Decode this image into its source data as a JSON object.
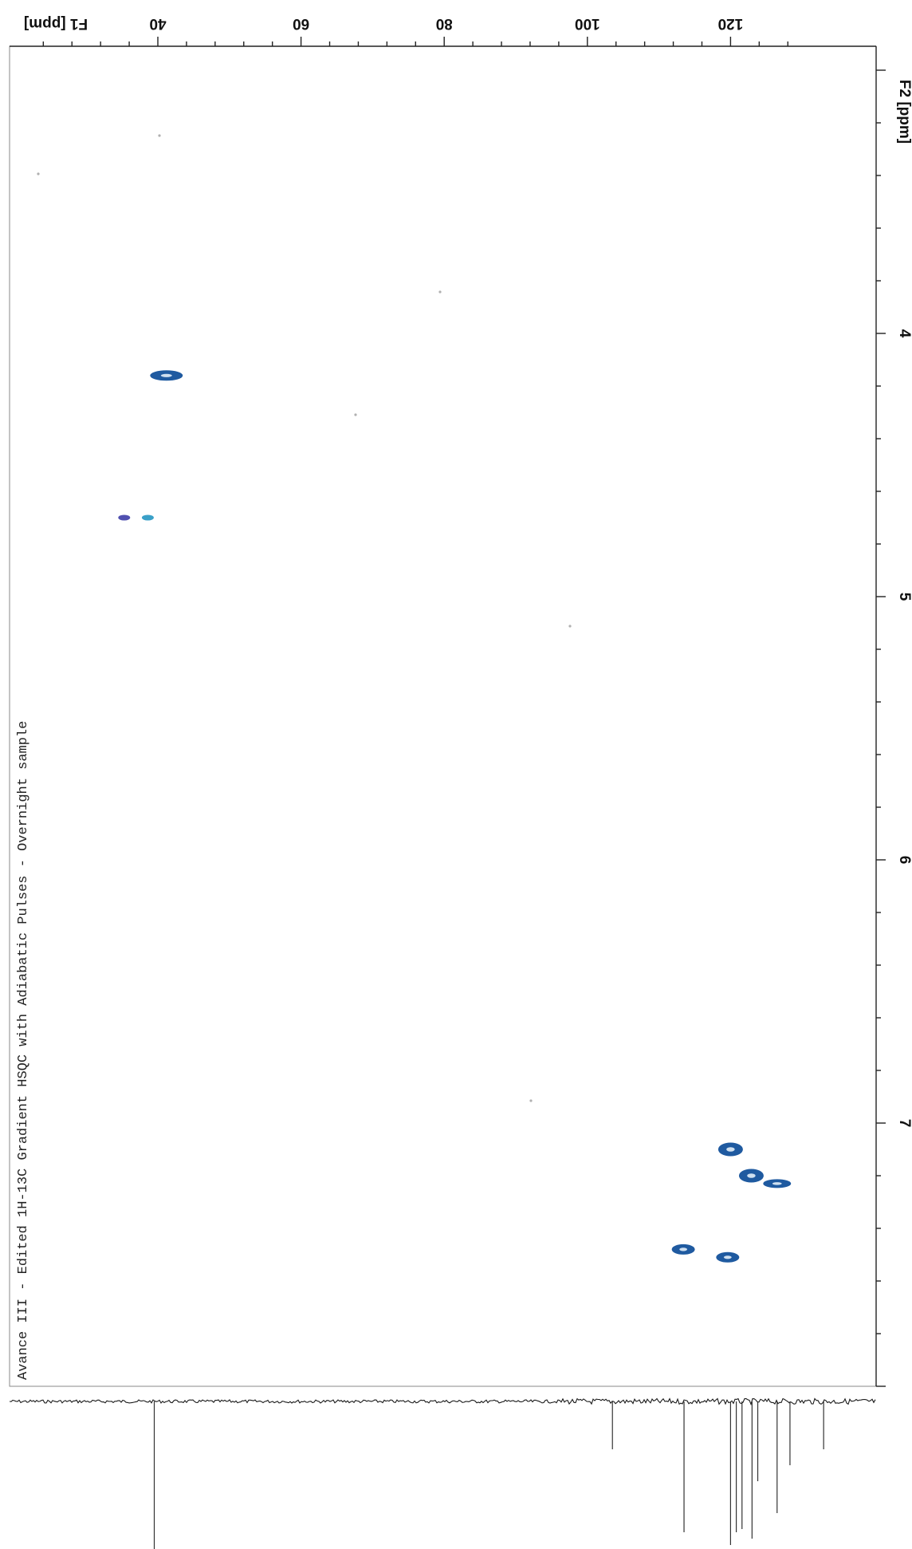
{
  "chart_data": {
    "type": "scatter",
    "title": "Avance III - Edited 1H-13C Gradient HSQC with Adiabatic Pulses - Overnight sample",
    "x_axis": {
      "label": "F2 [ppm]",
      "range": [
        2.8,
        8.0
      ],
      "ticks": [
        "4",
        "5",
        "6",
        "7"
      ]
    },
    "y_axis": {
      "label": "F1 [ppm]",
      "range": [
        22,
        130
      ],
      "ticks": [
        "40",
        "60",
        "80",
        "100",
        "120"
      ]
    },
    "orientation": "rotated 90 degrees clockwise",
    "grid": false,
    "peaks": [
      {
        "f2": 4.16,
        "f1": 41.2,
        "phase": "positive",
        "color": "#1f5aa0"
      },
      {
        "f2": 4.7,
        "f1": 38.6,
        "phase": "negative",
        "color": "#3aa0c8"
      },
      {
        "f2": 4.7,
        "f1": 35.3,
        "phase": "positive",
        "color": "#5050b0"
      },
      {
        "f2": 7.1,
        "f1": 120.0,
        "phase": "positive",
        "color": "#1f5aa0"
      },
      {
        "f2": 7.2,
        "f1": 122.9,
        "phase": "positive",
        "color": "#1f5aa0"
      },
      {
        "f2": 7.23,
        "f1": 126.5,
        "phase": "positive",
        "color": "#1f5aa0"
      },
      {
        "f2": 7.48,
        "f1": 113.4,
        "phase": "positive",
        "color": "#1f5aa0"
      },
      {
        "f2": 7.51,
        "f1": 119.6,
        "phase": "positive",
        "color": "#1f5aa0"
      }
    ],
    "projection": {
      "axis": "F1",
      "peaks": [
        {
          "f1": 39.5,
          "height": 0.95
        },
        {
          "f1": 103.5,
          "height": 0.3
        },
        {
          "f1": 113.5,
          "height": 0.82
        },
        {
          "f1": 120.0,
          "height": 0.9
        },
        {
          "f1": 120.8,
          "height": 0.82
        },
        {
          "f1": 121.6,
          "height": 0.8
        },
        {
          "f1": 123.0,
          "height": 0.86
        },
        {
          "f1": 123.8,
          "height": 0.5
        },
        {
          "f1": 126.5,
          "height": 0.7
        },
        {
          "f1": 128.3,
          "height": 0.4
        },
        {
          "f1": 133.0,
          "height": 0.3
        }
      ]
    }
  }
}
